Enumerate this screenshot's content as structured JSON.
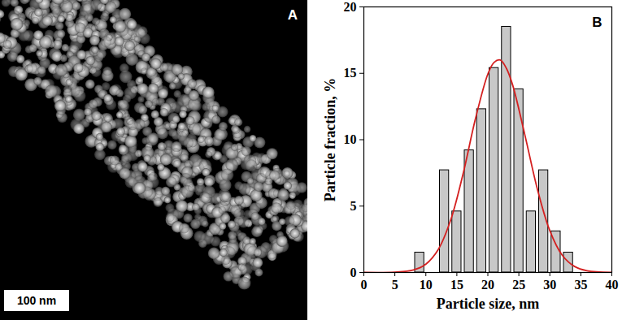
{
  "panel_a": {
    "label": "A",
    "scale_bar": "100 nm"
  },
  "chart_data": {
    "type": "histogram",
    "panel_label": "B",
    "x_label": "Particle size, nm",
    "y_label": "Particle fraction, %",
    "bins": [
      8,
      10,
      12,
      14,
      16,
      18,
      20,
      22,
      24,
      26,
      28,
      30,
      32,
      34
    ],
    "values": [
      1.5,
      0,
      7.7,
      4.6,
      9.2,
      12.3,
      15.4,
      18.5,
      13.8,
      4.6,
      7.7,
      3.1,
      1.5
    ],
    "color": "#c8c8c8",
    "curve": {
      "type": "line",
      "color": "#d42020",
      "x": [
        0,
        5,
        8,
        10,
        12,
        14,
        16,
        18,
        20,
        21,
        22,
        23,
        24,
        26,
        28,
        30,
        32,
        34,
        36,
        40
      ],
      "values": [
        0,
        0.02,
        0.19,
        0.63,
        1.73,
        3.94,
        7.42,
        11.57,
        14.94,
        15.82,
        16.0,
        15.37,
        14.12,
        10.3,
        6.26,
        3.14,
        1.3,
        0.45,
        0.13,
        0.01
      ]
    },
    "xlim": [
      0,
      40
    ],
    "xticks": [
      0,
      5,
      10,
      15,
      20,
      25,
      30,
      35,
      40
    ],
    "ylim": [
      0,
      20
    ],
    "yticks": [
      0,
      5,
      10,
      15,
      20
    ],
    "grid": false
  }
}
